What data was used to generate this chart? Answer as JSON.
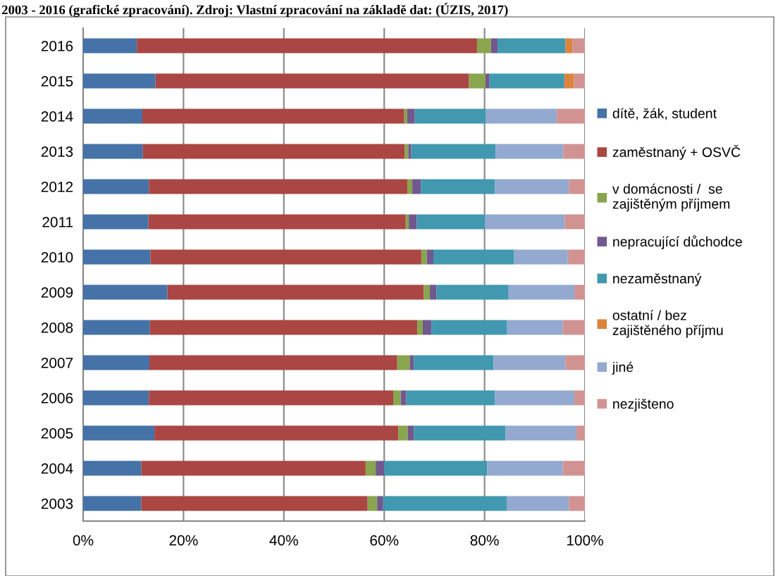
{
  "chart_data": {
    "type": "bar",
    "orientation": "horizontal",
    "stacked": true,
    "title": "2003 - 2016 (grafické zpracování). Zdroj: Vlastní zpracování na základě dat: (ÚZIS, 2017)",
    "categories": [
      "2016",
      "2015",
      "2014",
      "2013",
      "2012",
      "2011",
      "2010",
      "2009",
      "2008",
      "2007",
      "2006",
      "2005",
      "2004",
      "2003"
    ],
    "series": [
      {
        "name": "dítě, žák, student",
        "color": "#4572a7",
        "values": [
          10.7,
          14.4,
          11.8,
          11.9,
          13.1,
          13.0,
          13.4,
          16.8,
          13.3,
          13.2,
          13.1,
          14.2,
          11.6,
          11.6
        ]
      },
      {
        "name": "zaměstnaný + OSVČ",
        "color": "#aa4643",
        "values": [
          67.8,
          62.5,
          52.2,
          52.2,
          51.5,
          51.3,
          54.0,
          51.1,
          53.3,
          49.4,
          48.7,
          48.6,
          44.7,
          45.1
        ]
      },
      {
        "name": "v domácnosti /  se\nzajištěným příjmem",
        "color": "#89a54e",
        "values": [
          2.8,
          3.3,
          0.6,
          0.7,
          1.0,
          0.6,
          1.1,
          1.2,
          1.1,
          2.5,
          1.5,
          1.9,
          2.0,
          1.9
        ]
      },
      {
        "name": "nepracující důchodce",
        "color": "#71588f",
        "values": [
          1.3,
          0.8,
          1.5,
          0.6,
          1.7,
          1.6,
          1.3,
          1.3,
          1.7,
          0.8,
          1.1,
          1.2,
          1.7,
          1.2
        ]
      },
      {
        "name": "nezaměstnaný",
        "color": "#4198af",
        "values": [
          13.5,
          14.9,
          14.2,
          16.8,
          14.8,
          13.6,
          16.1,
          14.4,
          15.1,
          15.9,
          17.7,
          18.3,
          20.5,
          24.6
        ]
      },
      {
        "name": "ostatní / bez\nzajištěného příjmu",
        "color": "#db843d",
        "values": [
          1.4,
          1.9,
          0,
          0,
          0,
          0,
          0,
          0,
          0,
          0,
          0,
          0,
          0,
          0
        ]
      },
      {
        "name": "jiné",
        "color": "#93a9cf",
        "values": [
          0,
          0,
          14.1,
          13.5,
          14.7,
          15.9,
          10.7,
          13.1,
          11.1,
          14.3,
          15.8,
          14.1,
          15.1,
          12.4
        ]
      },
      {
        "name": "nezjišteno",
        "color": "#d19392",
        "values": [
          2.5,
          2.2,
          5.6,
          4.3,
          3.2,
          4.0,
          3.4,
          2.1,
          4.4,
          3.9,
          2.1,
          1.7,
          4.4,
          3.2
        ]
      }
    ],
    "xlim": [
      0,
      100
    ],
    "xticks": [
      {
        "value": 0,
        "label": "0%"
      },
      {
        "value": 20,
        "label": "20%"
      },
      {
        "value": 40,
        "label": "40%"
      },
      {
        "value": 60,
        "label": "60%"
      },
      {
        "value": 80,
        "label": "80%"
      },
      {
        "value": 100,
        "label": "100%"
      }
    ],
    "grid": "x",
    "legend": "right"
  }
}
